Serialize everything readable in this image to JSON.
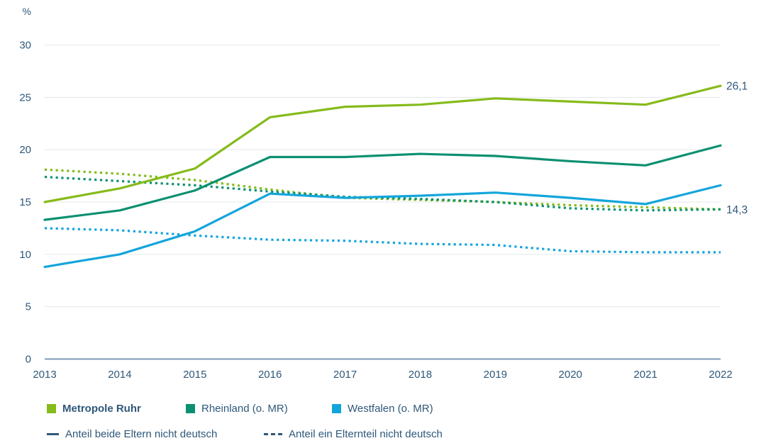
{
  "chart_data": {
    "type": "line",
    "title": "",
    "ylabel": "%",
    "xlabel": "",
    "x": [
      2013,
      2014,
      2015,
      2016,
      2017,
      2018,
      2019,
      2020,
      2021,
      2022
    ],
    "ylim": [
      0,
      30
    ],
    "yticks": [
      0,
      5,
      10,
      15,
      20,
      25,
      30
    ],
    "grid": true,
    "legend_position": "bottom",
    "series": [
      {
        "name": "Metropole Ruhr - Anteil ein Elternteil nicht deutsch",
        "region": "Metropole Ruhr",
        "measure": "Anteil ein Elternteil nicht deutsch",
        "style": "dotted",
        "color": "#85BB1B",
        "values": [
          18.1,
          17.7,
          17.1,
          16.2,
          15.4,
          15.2,
          15.0,
          14.7,
          14.5,
          14.3
        ],
        "end_label": "14,3"
      },
      {
        "name": "Rheinland (o. MR) - Anteil ein Elternteil nicht deutsch",
        "region": "Rheinland (o. MR)",
        "measure": "Anteil ein Elternteil nicht deutsch",
        "style": "dotted",
        "color": "#0C9071",
        "values": [
          17.4,
          17.0,
          16.6,
          16.0,
          15.5,
          15.3,
          15.0,
          14.4,
          14.2,
          14.3
        ]
      },
      {
        "name": "Westfalen (o. MR) - Anteil ein Elternteil nicht deutsch",
        "region": "Westfalen (o. MR)",
        "measure": "Anteil ein Elternteil nicht deutsch",
        "style": "dotted",
        "color": "#13A5DB",
        "values": [
          12.5,
          12.3,
          11.8,
          11.4,
          11.3,
          11.0,
          10.9,
          10.3,
          10.2,
          10.2
        ]
      },
      {
        "name": "Metropole Ruhr - Anteil beide Eltern nicht deutsch",
        "region": "Metropole Ruhr",
        "measure": "Anteil beide Eltern nicht deutsch",
        "style": "solid",
        "color": "#85BB1B",
        "values": [
          15.0,
          16.3,
          18.2,
          23.1,
          24.1,
          24.3,
          24.9,
          24.6,
          24.3,
          26.1
        ],
        "end_label": "26,1"
      },
      {
        "name": "Rheinland (o. MR) - Anteil beide Eltern nicht deutsch",
        "region": "Rheinland (o. MR)",
        "measure": "Anteil beide Eltern nicht deutsch",
        "style": "solid",
        "color": "#0C9071",
        "values": [
          13.3,
          14.2,
          16.1,
          19.3,
          19.3,
          19.6,
          19.4,
          18.9,
          18.5,
          20.4
        ]
      },
      {
        "name": "Westfalen (o. MR) - Anteil beide Eltern nicht deutsch",
        "region": "Westfalen (o. MR)",
        "measure": "Anteil beide Eltern nicht deutsch",
        "style": "solid",
        "color": "#13A5DB",
        "values": [
          8.8,
          10.0,
          12.2,
          15.8,
          15.4,
          15.6,
          15.9,
          15.4,
          14.8,
          16.6
        ]
      }
    ],
    "annotations": [
      {
        "text": "26,1",
        "series": "Metropole Ruhr - Anteil beide Eltern nicht deutsch",
        "x": 2022
      },
      {
        "text": "14,3",
        "series": "Metropole Ruhr - Anteil ein Elternteil nicht deutsch",
        "x": 2022
      }
    ]
  },
  "legend": {
    "regions": [
      {
        "label": "Metropole Ruhr",
        "color": "#85BB1B"
      },
      {
        "label": "Rheinland (o. MR)",
        "color": "#0C9071"
      },
      {
        "label": "Westfalen (o. MR)",
        "color": "#13A5DB"
      }
    ],
    "styles": [
      {
        "label": "Anteil beide Eltern nicht deutsch",
        "style": "solid"
      },
      {
        "label": "Anteil ein Elternteil nicht deutsch",
        "style": "dotted"
      }
    ]
  },
  "colors": {
    "text": "#2F587A",
    "grid": "#E3E7EB",
    "axis_line": "#7E9AB5",
    "green": "#85BB1B",
    "teal": "#0C9071",
    "blue": "#13A5DB"
  }
}
